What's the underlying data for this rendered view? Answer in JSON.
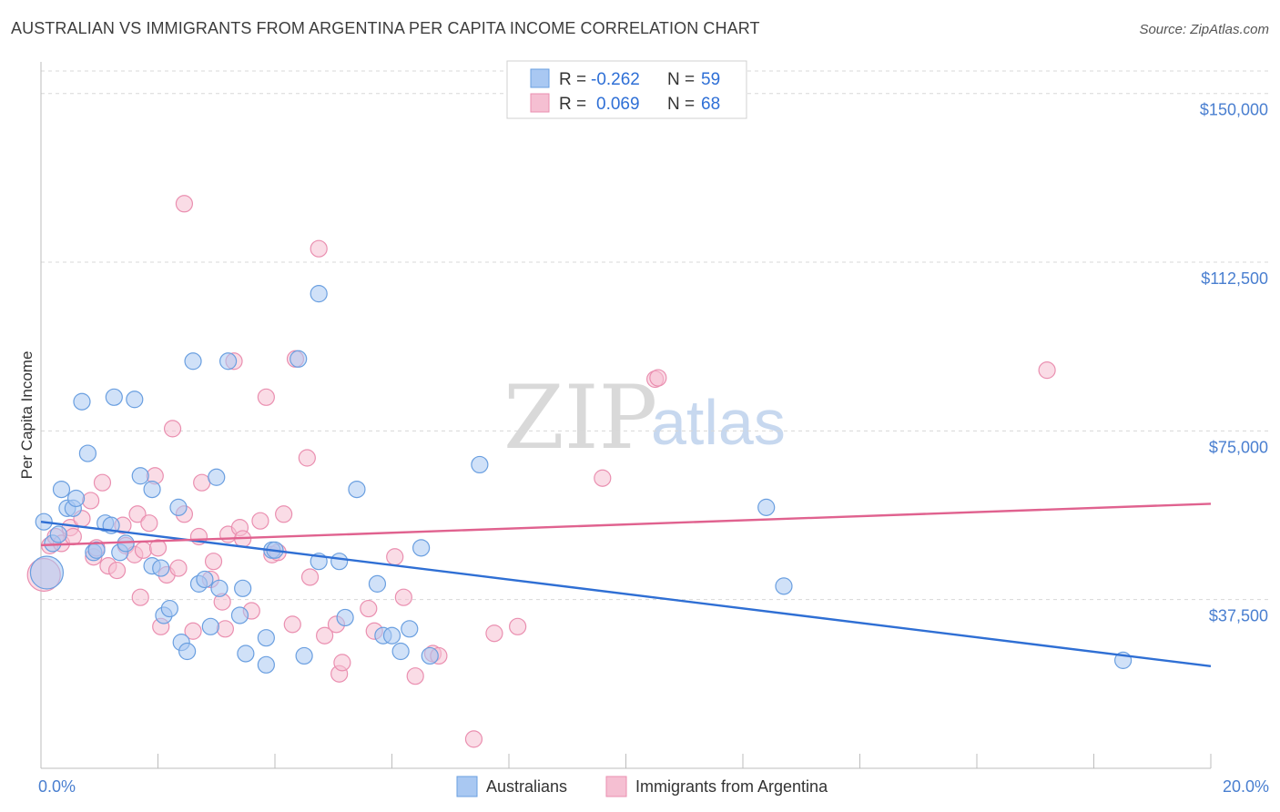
{
  "title": "AUSTRALIAN VS IMMIGRANTS FROM ARGENTINA PER CAPITA INCOME CORRELATION CHART",
  "source": "Source: ZipAtlas.com",
  "colors": {
    "blue": "#6a9fe0",
    "blue_fill": "#a9c8f2",
    "blue_line": "#2f6fd4",
    "pink": "#ea8fb0",
    "pink_fill": "#f5bfd2",
    "pink_line": "#e0628f",
    "axis_text": "#4a7fd0",
    "grid": "#d8d8d8"
  },
  "legend": {
    "r_label": "R =",
    "n_label": "N =",
    "entries": [
      {
        "r": "-0.262",
        "n": "59"
      },
      {
        "r": "0.069",
        "n": "68"
      }
    ]
  },
  "bottom_legend": [
    "Australians",
    "Immigrants from Argentina"
  ],
  "watermark": {
    "zip": "ZIP",
    "atlas": "atlas"
  },
  "chart_data": {
    "type": "scatter",
    "title": "AUSTRALIAN VS IMMIGRANTS FROM ARGENTINA PER CAPITA INCOME CORRELATION CHART",
    "xlabel": "",
    "ylabel": "Per Capita Income",
    "xlim": [
      0,
      20
    ],
    "ylim": [
      0,
      155000
    ],
    "x_tick_labels": [
      "0.0%",
      "20.0%"
    ],
    "y_ticks": [
      37500,
      75000,
      112500,
      150000
    ],
    "y_tick_labels": [
      "$37,500",
      "$75,000",
      "$112,500",
      "$150,000"
    ],
    "grid": true,
    "legend_position": "top-center",
    "series": [
      {
        "name": "Australians",
        "r": -0.262,
        "n": 59,
        "trend": {
          "x0": 0,
          "y0": 54800,
          "x1": 20,
          "y1": 22700
        },
        "points": [
          [
            0.1,
            43500
          ],
          [
            0.2,
            50000
          ],
          [
            0.3,
            52000
          ],
          [
            0.35,
            62000
          ],
          [
            0.45,
            57800
          ],
          [
            0.55,
            57800
          ],
          [
            0.6,
            60000
          ],
          [
            0.7,
            81500
          ],
          [
            0.8,
            70000
          ],
          [
            0.9,
            48000
          ],
          [
            0.95,
            48500
          ],
          [
            1.1,
            54500
          ],
          [
            1.2,
            54000
          ],
          [
            1.25,
            82500
          ],
          [
            1.35,
            48000
          ],
          [
            1.45,
            50000
          ],
          [
            1.6,
            82000
          ],
          [
            1.7,
            65000
          ],
          [
            1.9,
            62000
          ],
          [
            1.9,
            45000
          ],
          [
            2.05,
            44500
          ],
          [
            2.1,
            34000
          ],
          [
            2.2,
            35500
          ],
          [
            2.35,
            58000
          ],
          [
            2.4,
            28000
          ],
          [
            2.5,
            26000
          ],
          [
            2.6,
            90500
          ],
          [
            2.7,
            41000
          ],
          [
            2.8,
            42000
          ],
          [
            2.9,
            31500
          ],
          [
            3.0,
            64700
          ],
          [
            3.05,
            40000
          ],
          [
            3.2,
            90500
          ],
          [
            3.4,
            34000
          ],
          [
            3.45,
            40000
          ],
          [
            3.5,
            25500
          ],
          [
            3.85,
            23000
          ],
          [
            3.85,
            29000
          ],
          [
            3.95,
            48500
          ],
          [
            4.0,
            48500
          ],
          [
            4.4,
            91000
          ],
          [
            4.5,
            25000
          ],
          [
            4.75,
            46000
          ],
          [
            4.75,
            105500
          ],
          [
            5.1,
            46000
          ],
          [
            5.2,
            33500
          ],
          [
            5.4,
            62000
          ],
          [
            5.75,
            41000
          ],
          [
            5.85,
            29500
          ],
          [
            6.0,
            29500
          ],
          [
            6.15,
            26000
          ],
          [
            6.3,
            31000
          ],
          [
            6.5,
            49000
          ],
          [
            6.65,
            25000
          ],
          [
            7.5,
            67500
          ],
          [
            12.4,
            58000
          ],
          [
            12.7,
            40500
          ],
          [
            18.5,
            24000
          ],
          [
            0.05,
            54800
          ]
        ]
      },
      {
        "name": "Immigrants from Argentina",
        "r": 0.069,
        "n": 68,
        "trend": {
          "x0": 0,
          "y0": 49600,
          "x1": 20,
          "y1": 58800
        },
        "points": [
          [
            0.05,
            43000
          ],
          [
            0.15,
            49500
          ],
          [
            0.25,
            51500
          ],
          [
            0.35,
            50000
          ],
          [
            0.5,
            53500
          ],
          [
            0.55,
            51500
          ],
          [
            0.7,
            55500
          ],
          [
            0.85,
            59500
          ],
          [
            0.9,
            47000
          ],
          [
            0.95,
            49000
          ],
          [
            1.05,
            63500
          ],
          [
            1.15,
            45000
          ],
          [
            1.3,
            44000
          ],
          [
            1.4,
            54000
          ],
          [
            1.45,
            49500
          ],
          [
            1.6,
            47500
          ],
          [
            1.65,
            56500
          ],
          [
            1.7,
            38000
          ],
          [
            1.75,
            48500
          ],
          [
            1.85,
            54500
          ],
          [
            1.95,
            65000
          ],
          [
            2.0,
            49000
          ],
          [
            2.05,
            31500
          ],
          [
            2.15,
            43000
          ],
          [
            2.25,
            75500
          ],
          [
            2.35,
            44500
          ],
          [
            2.45,
            56500
          ],
          [
            2.45,
            125500
          ],
          [
            2.6,
            30500
          ],
          [
            2.7,
            51500
          ],
          [
            2.75,
            63500
          ],
          [
            2.9,
            42000
          ],
          [
            2.95,
            46000
          ],
          [
            3.1,
            37000
          ],
          [
            3.15,
            31000
          ],
          [
            3.2,
            52000
          ],
          [
            3.3,
            90500
          ],
          [
            3.4,
            53500
          ],
          [
            3.45,
            51000
          ],
          [
            3.6,
            35000
          ],
          [
            3.75,
            55000
          ],
          [
            3.85,
            82500
          ],
          [
            3.95,
            47500
          ],
          [
            4.05,
            48000
          ],
          [
            4.15,
            56500
          ],
          [
            4.3,
            32000
          ],
          [
            4.35,
            91000
          ],
          [
            4.55,
            69000
          ],
          [
            4.6,
            42500
          ],
          [
            4.75,
            115500
          ],
          [
            4.85,
            29500
          ],
          [
            5.05,
            32000
          ],
          [
            5.1,
            21000
          ],
          [
            5.15,
            23500
          ],
          [
            5.6,
            35500
          ],
          [
            5.7,
            30500
          ],
          [
            6.05,
            47000
          ],
          [
            6.2,
            38000
          ],
          [
            6.4,
            20500
          ],
          [
            6.7,
            25500
          ],
          [
            6.8,
            25000
          ],
          [
            7.4,
            6500
          ],
          [
            7.75,
            30000
          ],
          [
            8.15,
            31500
          ],
          [
            9.6,
            64500
          ],
          [
            10.5,
            86500
          ],
          [
            10.55,
            86800
          ],
          [
            17.2,
            88500
          ]
        ]
      }
    ]
  }
}
